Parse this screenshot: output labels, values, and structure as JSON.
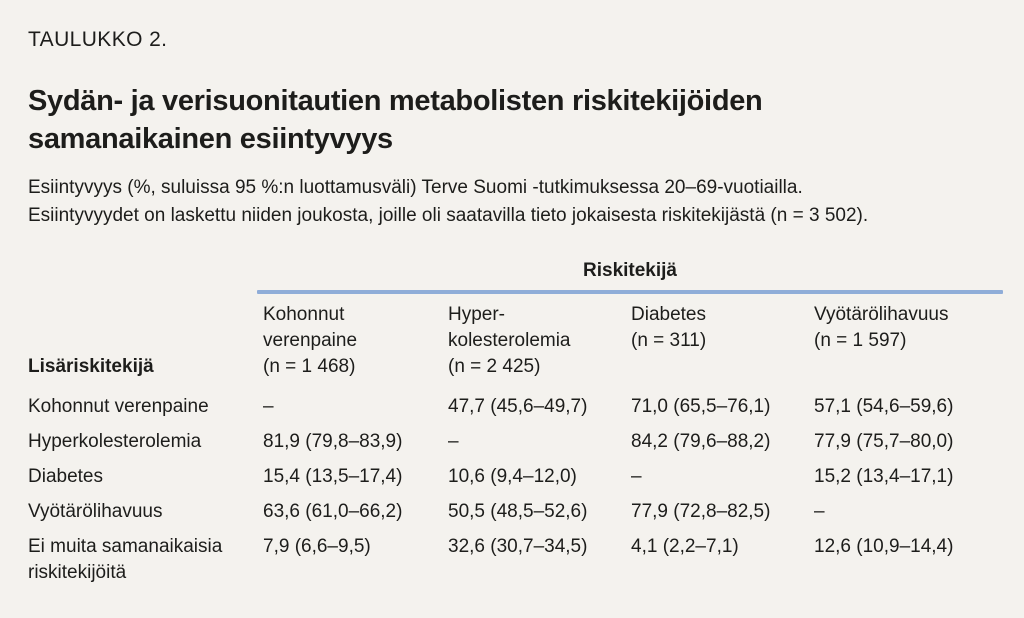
{
  "page": {
    "kicker": "TAULUKKO 2.",
    "title": "Sydän- ja verisuonitautien metabolisten riskitekijöiden\nsamanaikainen esiintyvyys",
    "description": "Esiintyvyys (%, suluissa 95 %:n luottamusväli) Terve Suomi -tutkimuksessa 20–69-vuotiailla.\nEsiintyvyydet on laskettu niiden joukosta, joille oli saatavilla tieto jokaisesta riskitekijästä (n = 3 502)."
  },
  "table": {
    "group_header": "Riskitekijä",
    "row_header": "Lisäriskitekijä",
    "columns": [
      {
        "title": "Kohonnut\nverenpaine\n(n = 1 468)"
      },
      {
        "title": "Hyper-\nkolesterolemia\n(n = 2 425)"
      },
      {
        "title": "Diabetes\n(n = 311)"
      },
      {
        "title": "Vyötärölihavuus\n(n = 1 597)"
      }
    ],
    "rows": [
      {
        "label": "Kohonnut verenpaine",
        "cells": [
          "–",
          "47,7 (45,6–49,7)",
          "71,0 (65,5–76,1)",
          "57,1 (54,6–59,6)"
        ]
      },
      {
        "label": "Hyperkolesterolemia",
        "cells": [
          "81,9 (79,8–83,9)",
          "–",
          "84,2 (79,6–88,2)",
          "77,9 (75,7–80,0)"
        ]
      },
      {
        "label": "Diabetes",
        "cells": [
          "15,4 (13,5–17,4)",
          "10,6 (9,4–12,0)",
          "–",
          "15,2 (13,4–17,1)"
        ]
      },
      {
        "label": "Vyötärölihavuus",
        "cells": [
          "63,6 (61,0–66,2)",
          "50,5 (48,5–52,6)",
          "77,9 (72,8–82,5)",
          "–"
        ]
      },
      {
        "label": "Ei muita samanaikaisia\nriskitekijöitä",
        "cells": [
          "7,9 (6,6–9,5)",
          "32,6 (30,7–34,5)",
          "4,1 (2,2–7,1)",
          "12,6 (10,9–14,4)"
        ]
      }
    ]
  },
  "colors": {
    "background": "#f4f2ee",
    "text": "#1d1d1b",
    "accent_line": "#8fadd8"
  }
}
